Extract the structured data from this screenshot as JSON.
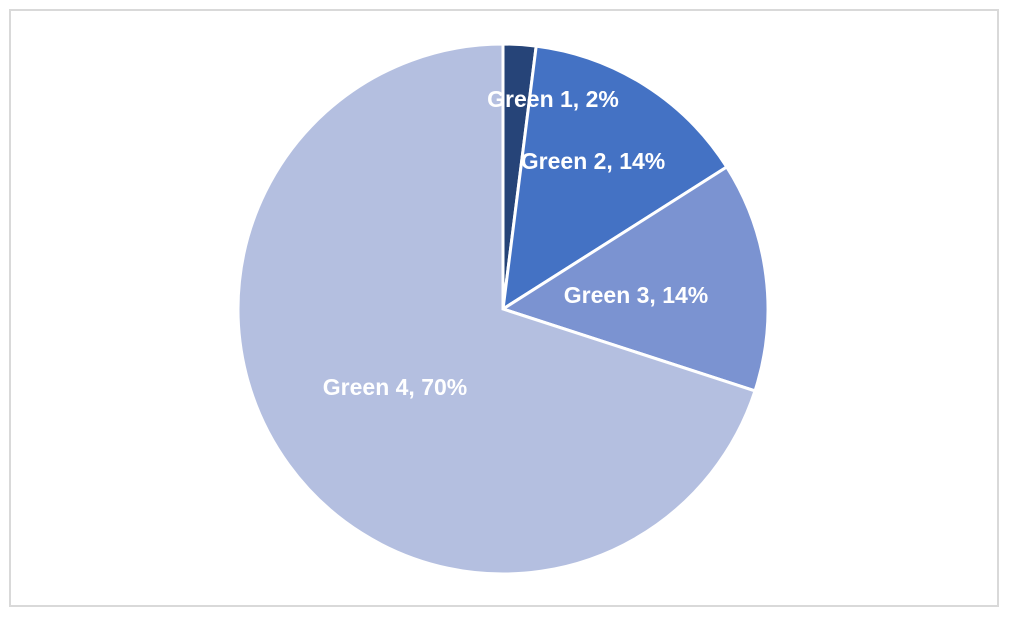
{
  "chart_data": {
    "type": "pie",
    "values": [
      2,
      14,
      14,
      70
    ],
    "value_labels": [
      "Green 1, 2%",
      "Green 2, 14%",
      "Green 3, 14%",
      "Green 4, 70%"
    ],
    "colors": [
      "#264478",
      "#4472c4",
      "#7b93d1",
      "#b4bfe0"
    ]
  }
}
